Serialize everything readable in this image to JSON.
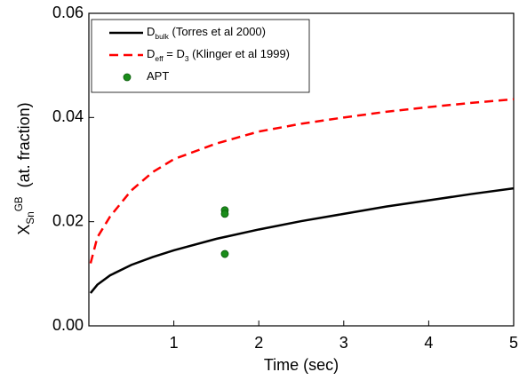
{
  "chart_data": {
    "type": "line",
    "x_label": "Time (sec)",
    "y_label": [
      {
        "text": "X"
      },
      {
        "text": "Sn",
        "shift": "sub"
      },
      {
        "text": "GB",
        "shift": "sup"
      },
      {
        "text": "  (at. fraction)"
      }
    ],
    "x": [
      0.02,
      0.1,
      0.25,
      0.5,
      0.75,
      1,
      1.5,
      2,
      2.5,
      3,
      3.5,
      4,
      4.5,
      5
    ],
    "series": [
      {
        "name": [
          {
            "text": "D"
          },
          {
            "text": "bulk",
            "shift": "sub"
          },
          {
            "text": " (Torres et al 2000)"
          }
        ],
        "color": "#000000",
        "dash": false,
        "values": [
          0.0063,
          0.0079,
          0.0097,
          0.0117,
          0.0132,
          0.0145,
          0.0167,
          0.0185,
          0.0201,
          0.0215,
          0.0229,
          0.0241,
          0.0253,
          0.0264
        ]
      },
      {
        "name": [
          {
            "text": "D"
          },
          {
            "text": "eff",
            "shift": "sub"
          },
          {
            "text": " = D"
          },
          {
            "text": "3",
            "shift": "sub"
          },
          {
            "text": " (Klinger et al 1999)"
          }
        ],
        "color": "#ff0000",
        "dash": true,
        "values": [
          0.012,
          0.017,
          0.021,
          0.026,
          0.0295,
          0.032,
          0.035,
          0.0373,
          0.0388,
          0.04,
          0.0411,
          0.042,
          0.0428,
          0.0435
        ]
      },
      {
        "name": [
          {
            "text": "APT"
          }
        ],
        "color": "#1a8c1a",
        "type": "scatter",
        "x": [
          1.6,
          1.6,
          1.6
        ],
        "values": [
          0.0222,
          0.0215,
          0.0138
        ]
      }
    ],
    "xlim": [
      0,
      5
    ],
    "ylim": [
      0,
      0.06
    ],
    "xticks": [
      1,
      2,
      3,
      4,
      5
    ],
    "yticks": [
      {
        "value": 0,
        "label": "0.00"
      },
      {
        "value": 0.02,
        "label": "0.02"
      },
      {
        "value": 0.04,
        "label": "0.04"
      },
      {
        "value": 0.06,
        "label": "0.06"
      }
    ],
    "legend": "upper-left"
  }
}
